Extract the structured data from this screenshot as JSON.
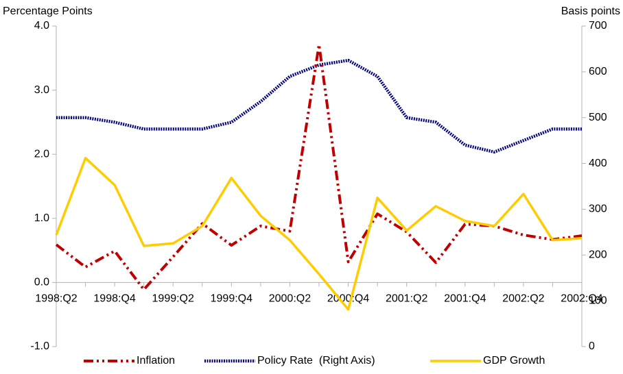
{
  "chart_data": {
    "type": "line",
    "y_label": "Percentage Points",
    "y2_label": "Basis points",
    "categories": [
      "1998:Q2",
      null,
      "1998:Q4",
      null,
      "1999:Q2",
      null,
      "1999:Q4",
      null,
      "2000:Q2",
      null,
      "2000:Q4",
      null,
      "2001:Q2",
      null,
      "2001:Q4",
      null,
      "2002:Q2",
      null,
      "2002:Q4"
    ],
    "series": [
      {
        "name": "Inflation",
        "color": "#c00000",
        "style": "dash-dot-dot",
        "values": [
          0.59,
          0.24,
          0.49,
          -0.11,
          0.4,
          0.92,
          0.58,
          0.88,
          0.8,
          3.71,
          0.32,
          1.07,
          0.79,
          0.31,
          0.91,
          0.88,
          0.74,
          0.67,
          0.73
        ]
      },
      {
        "name": "Policy Rate  (Right Axis)",
        "color": "#000080",
        "style": "dotted",
        "axis": "y2",
        "values": [
          500,
          500,
          490,
          475,
          475,
          475,
          490,
          535,
          590,
          615,
          625,
          590,
          500,
          490,
          440,
          425,
          450,
          475,
          475
        ]
      },
      {
        "name": "GDP Growth",
        "color": "#ffcc00",
        "style": "solid",
        "values": [
          0.74,
          1.94,
          1.52,
          0.57,
          0.61,
          0.88,
          1.63,
          1.04,
          0.66,
          0.13,
          -0.42,
          1.32,
          0.81,
          1.19,
          0.96,
          0.88,
          1.38,
          0.66,
          0.69
        ]
      }
    ],
    "ylim": [
      -1,
      4
    ],
    "yticks": [
      {
        "value": -1,
        "label": "-1.0"
      },
      {
        "value": 0,
        "label": "0.0"
      },
      {
        "value": 1,
        "label": "1.0"
      },
      {
        "value": 2,
        "label": "2.0"
      },
      {
        "value": 3,
        "label": "3.0"
      },
      {
        "value": 4,
        "label": "4.0"
      }
    ],
    "y2lim": [
      0,
      700
    ],
    "y2ticks": [
      0,
      100,
      200,
      300,
      400,
      500,
      600,
      700
    ],
    "grid": false,
    "legend": "bottom"
  }
}
